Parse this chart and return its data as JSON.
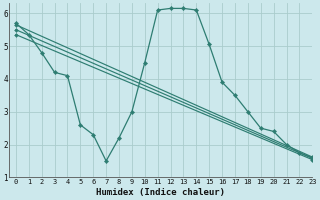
{
  "xlabel": "Humidex (Indice chaleur)",
  "bg_color": "#cce8ec",
  "grid_color": "#aacccc",
  "line_color": "#2e7d72",
  "xlim": [
    -0.5,
    23
  ],
  "ylim": [
    1,
    6.3
  ],
  "xticks": [
    0,
    1,
    2,
    3,
    4,
    5,
    6,
    7,
    8,
    9,
    10,
    11,
    12,
    13,
    14,
    15,
    16,
    17,
    18,
    19,
    20,
    21,
    22,
    23
  ],
  "yticks": [
    1,
    2,
    3,
    4,
    5,
    6
  ],
  "lines": [
    {
      "x": [
        0,
        1,
        2,
        3,
        4,
        5,
        6,
        7,
        8,
        9,
        10,
        11,
        12,
        13,
        14,
        15,
        16,
        17,
        18,
        19,
        20,
        21,
        22,
        23
      ],
      "y": [
        5.7,
        5.35,
        4.8,
        4.2,
        4.1,
        2.6,
        2.3,
        1.5,
        2.2,
        3.0,
        4.5,
        6.1,
        6.15,
        6.15,
        6.1,
        5.05,
        3.9,
        3.5,
        3.0,
        2.5,
        2.4,
        2.0,
        1.75,
        1.6
      ]
    },
    {
      "x": [
        0,
        23
      ],
      "y": [
        5.65,
        1.62
      ]
    },
    {
      "x": [
        0,
        23
      ],
      "y": [
        5.5,
        1.58
      ]
    },
    {
      "x": [
        0,
        23
      ],
      "y": [
        5.35,
        1.54
      ]
    }
  ]
}
